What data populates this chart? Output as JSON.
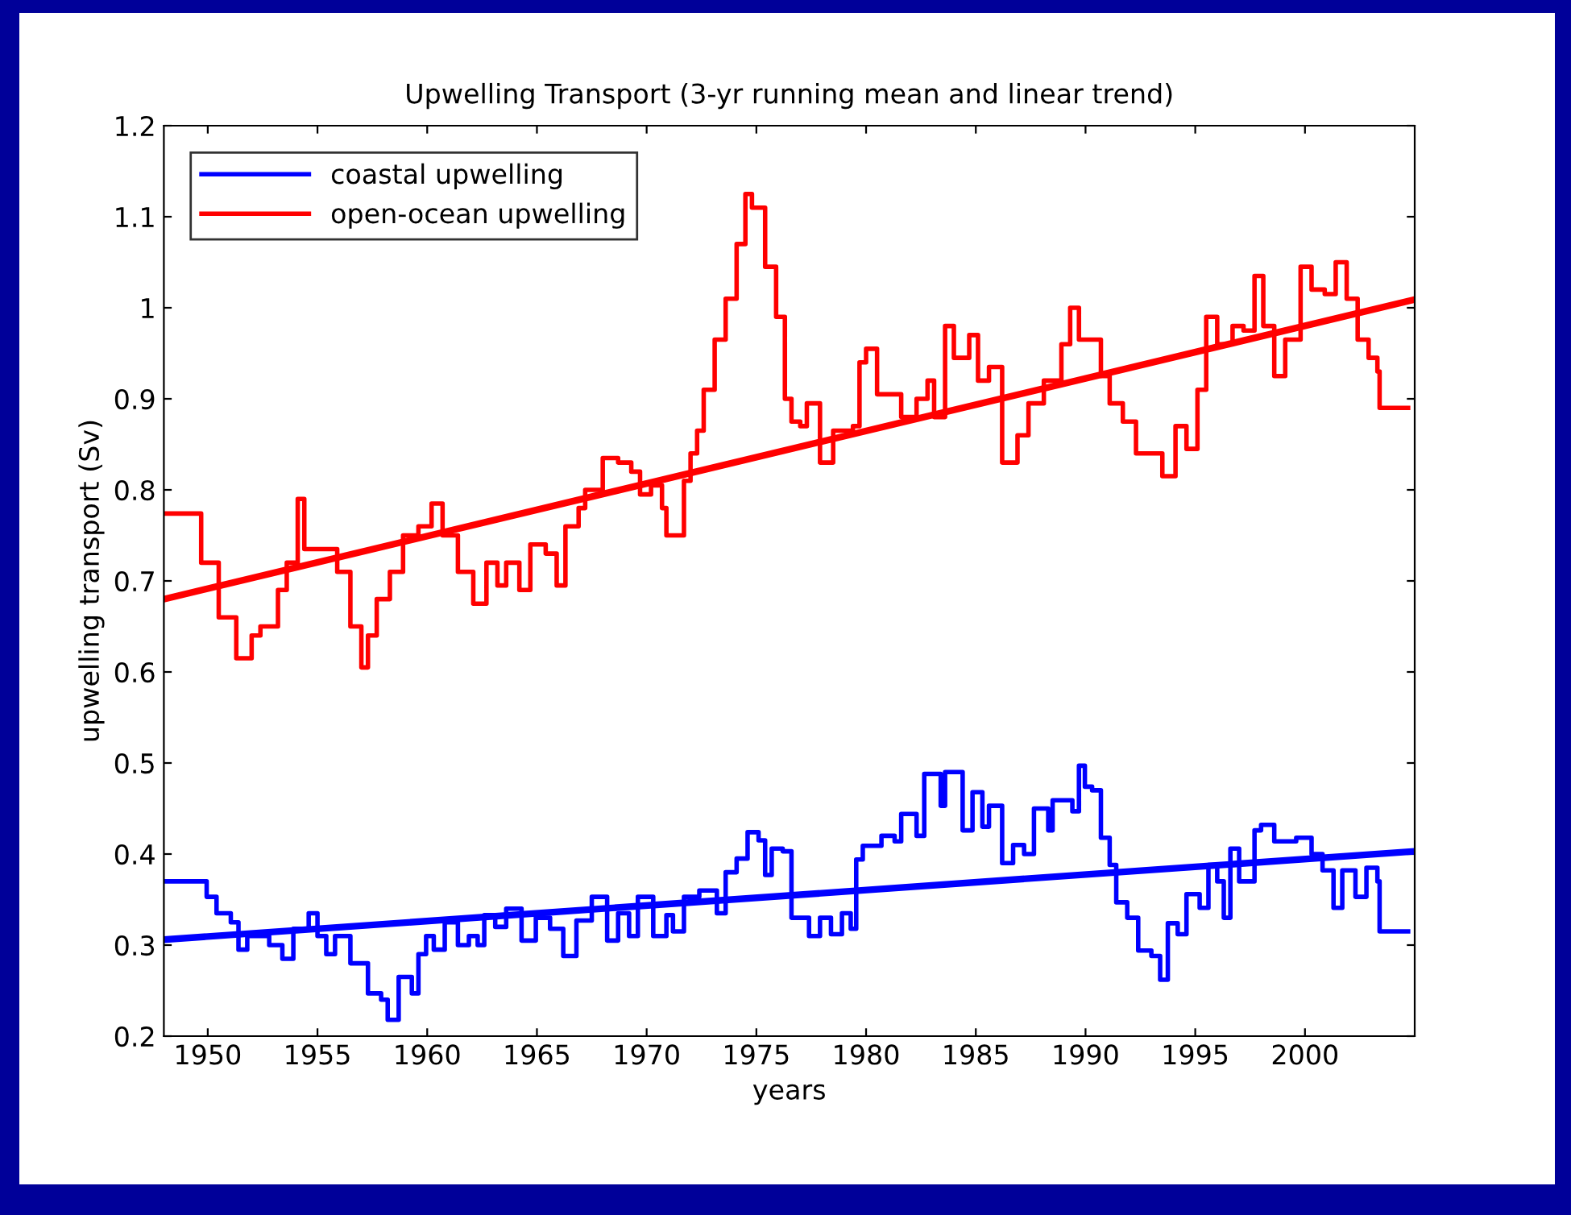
{
  "chart_data": {
    "type": "line",
    "title": "Upwelling Transport (3-yr running mean and linear trend)",
    "xlabel": "years",
    "ylabel": "upwelling transport (Sv)",
    "xlim": [
      1948,
      2005
    ],
    "xticks": [
      1950,
      1955,
      1960,
      1965,
      1970,
      1975,
      1980,
      1985,
      1990,
      1995,
      2000
    ],
    "ylim": [
      0.2,
      1.2
    ],
    "yticks": [
      0.2,
      0.3,
      0.4,
      0.5,
      0.6,
      0.7,
      0.8,
      0.9,
      1,
      1.1,
      1.2
    ],
    "grid": false,
    "legend": "top left",
    "line_style": "solid",
    "marker": "none",
    "series": [
      {
        "name": "coastal upwelling",
        "color": "#0000ff",
        "type": "step",
        "x": [
          1948,
          1949.2,
          1949.95,
          1950.4,
          1951.05,
          1951.4,
          1951.8,
          1952.4,
          1952.8,
          1953.4,
          1953.9,
          1954.6,
          1955,
          1955.4,
          1955.8,
          1956.5,
          1957.3,
          1957.9,
          1958.2,
          1958.7,
          1959.3,
          1959.6,
          1959.95,
          1960.3,
          1960.8,
          1961.4,
          1961.9,
          1962.3,
          1962.6,
          1963.1,
          1963.6,
          1964.3,
          1964.95,
          1965.6,
          1966.2,
          1966.5,
          1966.8,
          1967.5,
          1968.2,
          1968.7,
          1969.2,
          1969.6,
          1970.3,
          1970.9,
          1971.2,
          1971.7,
          1972.4,
          1973.2,
          1973.6,
          1974.1,
          1974.6,
          1975.1,
          1975.4,
          1975.7,
          1976.2,
          1976.6,
          1977.4,
          1977.9,
          1978.4,
          1978.9,
          1979.3,
          1979.55,
          1979.85,
          1980.7,
          1981.3,
          1981.6,
          1982.3,
          1982.65,
          1983.4,
          1983.6,
          1984.4,
          1984.85,
          1985.3,
          1985.6,
          1986.2,
          1986.7,
          1987.2,
          1987.65,
          1988.3,
          1988.5,
          1989.4,
          1989.7,
          1989.97,
          1990.3,
          1990.7,
          1991.1,
          1991.4,
          1991.9,
          1992.4,
          1993,
          1993.4,
          1993.75,
          1994.2,
          1994.6,
          1995.2,
          1995.6,
          1996,
          1996.3,
          1996.6,
          1997,
          1997.7,
          1998,
          1998.6,
          1999.6,
          2000.3,
          2000.8,
          2001.3,
          2001.7,
          2002.3,
          2002.8,
          2003.3,
          2003.4,
          2004.7
        ],
        "values": [
          0.37,
          0.37,
          0.353,
          0.335,
          0.325,
          0.295,
          0.31,
          0.31,
          0.3,
          0.285,
          0.318,
          0.335,
          0.31,
          0.29,
          0.31,
          0.28,
          0.247,
          0.24,
          0.218,
          0.265,
          0.247,
          0.29,
          0.31,
          0.295,
          0.325,
          0.3,
          0.31,
          0.3,
          0.333,
          0.32,
          0.34,
          0.305,
          0.33,
          0.318,
          0.288,
          0.288,
          0.327,
          0.353,
          0.305,
          0.335,
          0.31,
          0.353,
          0.31,
          0.333,
          0.315,
          0.353,
          0.36,
          0.335,
          0.38,
          0.395,
          0.424,
          0.415,
          0.377,
          0.406,
          0.403,
          0.33,
          0.31,
          0.33,
          0.312,
          0.335,
          0.318,
          0.394,
          0.409,
          0.42,
          0.414,
          0.444,
          0.42,
          0.488,
          0.453,
          0.49,
          0.426,
          0.468,
          0.43,
          0.453,
          0.39,
          0.41,
          0.4,
          0.45,
          0.426,
          0.459,
          0.447,
          0.497,
          0.474,
          0.47,
          0.418,
          0.388,
          0.347,
          0.33,
          0.294,
          0.288,
          0.262,
          0.324,
          0.312,
          0.356,
          0.341,
          0.388,
          0.37,
          0.33,
          0.406,
          0.37,
          0.426,
          0.432,
          0.414,
          0.418,
          0.4,
          0.382,
          0.341,
          0.382,
          0.353,
          0.385,
          0.37,
          0.315,
          0.315
        ]
      },
      {
        "name": "open-ocean upwelling",
        "color": "#ff0000",
        "type": "step",
        "x": [
          1948,
          1949.3,
          1949.7,
          1950.3,
          1950.5,
          1951.3,
          1952,
          1952.4,
          1952.8,
          1953.2,
          1953.6,
          1954.1,
          1954.4,
          1955.3,
          1955.9,
          1956.5,
          1957,
          1957.3,
          1957.7,
          1958.3,
          1958.9,
          1959.6,
          1960.2,
          1960.7,
          1961.4,
          1962.1,
          1962.7,
          1963.2,
          1963.6,
          1964.2,
          1964.7,
          1965.4,
          1965.9,
          1966.3,
          1966.9,
          1967.2,
          1968,
          1968.7,
          1969.3,
          1969.7,
          1970.2,
          1970.7,
          1970.9,
          1971.3,
          1971.7,
          1972,
          1972.3,
          1972.6,
          1973.1,
          1973.6,
          1974.1,
          1974.5,
          1974.8,
          1975.4,
          1975.9,
          1976.3,
          1976.6,
          1977,
          1977.3,
          1977.9,
          1978.5,
          1979.4,
          1979.7,
          1980,
          1980.5,
          1981.6,
          1982.3,
          1982.8,
          1983.1,
          1983.6,
          1984,
          1984.7,
          1985.1,
          1985.6,
          1986.2,
          1986.9,
          1987.4,
          1988.1,
          1988.9,
          1989.3,
          1989.7,
          1990.3,
          1990.7,
          1991.1,
          1991.7,
          1992.3,
          1993,
          1993.5,
          1994.1,
          1994.6,
          1995.1,
          1995.5,
          1996,
          1996.7,
          1997.2,
          1997.7,
          1998.1,
          1998.6,
          1999.1,
          1999.8,
          2000.3,
          2000.9,
          2001.4,
          2001.9,
          2002.4,
          2002.9,
          2003.3,
          2003.4,
          2004.7
        ],
        "values": [
          0.774,
          0.774,
          0.72,
          0.72,
          0.66,
          0.615,
          0.64,
          0.65,
          0.65,
          0.69,
          0.72,
          0.79,
          0.735,
          0.735,
          0.71,
          0.65,
          0.605,
          0.64,
          0.68,
          0.71,
          0.75,
          0.76,
          0.785,
          0.75,
          0.71,
          0.675,
          0.72,
          0.695,
          0.72,
          0.69,
          0.74,
          0.73,
          0.695,
          0.76,
          0.78,
          0.8,
          0.835,
          0.83,
          0.82,
          0.795,
          0.805,
          0.78,
          0.75,
          0.75,
          0.81,
          0.84,
          0.865,
          0.91,
          0.965,
          1.01,
          1.07,
          1.125,
          1.11,
          1.045,
          0.99,
          0.9,
          0.875,
          0.87,
          0.895,
          0.83,
          0.865,
          0.87,
          0.94,
          0.955,
          0.905,
          0.88,
          0.9,
          0.92,
          0.88,
          0.98,
          0.945,
          0.97,
          0.92,
          0.935,
          0.83,
          0.86,
          0.895,
          0.92,
          0.96,
          1.0,
          0.965,
          0.965,
          0.925,
          0.895,
          0.875,
          0.84,
          0.84,
          0.815,
          0.87,
          0.845,
          0.91,
          0.99,
          0.96,
          0.98,
          0.975,
          1.035,
          0.98,
          0.925,
          0.965,
          1.045,
          1.02,
          1.015,
          1.05,
          1.01,
          0.965,
          0.945,
          0.93,
          0.89,
          0.89
        ]
      },
      {
        "color": "#0000ff",
        "x": [
          1948,
          2005
        ],
        "values": [
          0.306,
          0.403
        ]
      },
      {
        "color": "#ff0000",
        "x": [
          1948,
          2005
        ],
        "values": [
          0.68,
          1.009
        ]
      }
    ]
  }
}
